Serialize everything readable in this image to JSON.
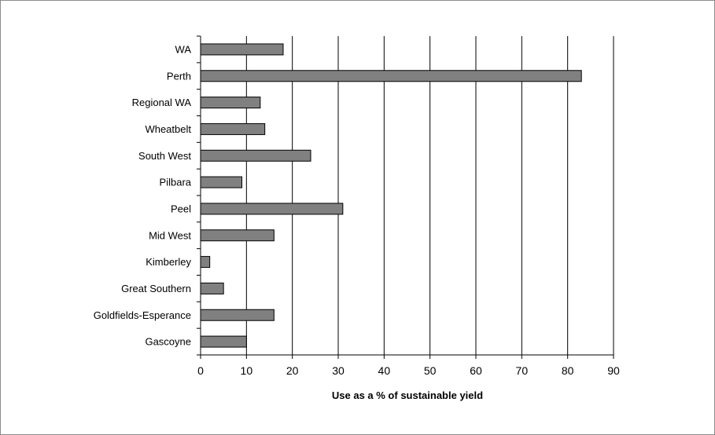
{
  "chart_data": {
    "type": "bar",
    "orientation": "horizontal",
    "title": "",
    "xlabel": "Use as a % of sustainable yield",
    "ylabel": "",
    "xlim": [
      0,
      90
    ],
    "xticks": [
      0,
      10,
      20,
      30,
      40,
      50,
      60,
      70,
      80,
      90
    ],
    "grid": "vertical",
    "bar_color": "#808080",
    "bar_edge_color": "#000000",
    "categories": [
      "WA",
      "Perth",
      "Regional WA",
      "Wheatbelt",
      "South West",
      "Pilbara",
      "Peel",
      "Mid West",
      "Kimberley",
      "Great Southern",
      "Goldfields-Esperance",
      "Gascoyne"
    ],
    "values": [
      18,
      83,
      13,
      14,
      24,
      9,
      31,
      16,
      2,
      5,
      16,
      10
    ]
  }
}
